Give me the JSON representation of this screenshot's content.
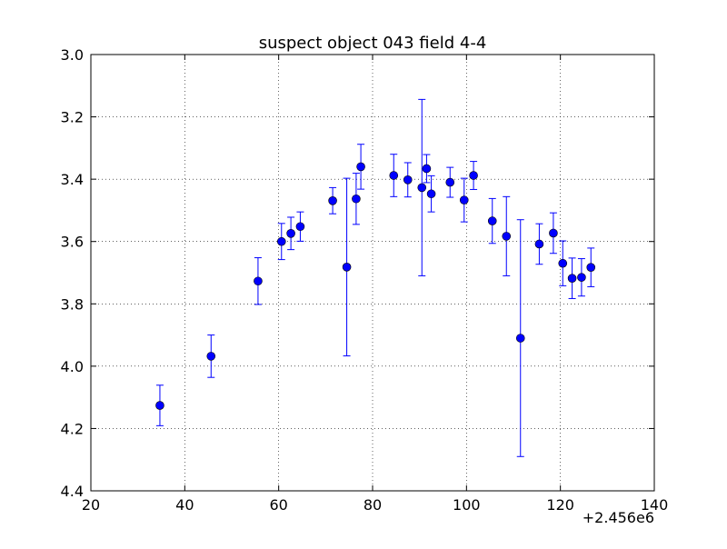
{
  "chart_data": {
    "type": "scatter",
    "title": "suspect object 043 field 4-4",
    "xlabel": "",
    "ylabel": "",
    "x_offset_label": "+2.456e6",
    "xlim": [
      20,
      140
    ],
    "ylim": [
      4.4,
      3.0
    ],
    "y_inverted": true,
    "grid": true,
    "xticks": [
      "20",
      "40",
      "60",
      "80",
      "100",
      "120",
      "140"
    ],
    "yticks": [
      "3.0",
      "3.2",
      "3.4",
      "3.6",
      "3.8",
      "4.0",
      "4.2",
      "4.4"
    ],
    "marker_color": "#0000ff",
    "points": [
      {
        "x": 34.7,
        "y": 4.126,
        "err": 0.065
      },
      {
        "x": 45.6,
        "y": 3.968,
        "err": 0.068
      },
      {
        "x": 55.6,
        "y": 3.727,
        "err": 0.075
      },
      {
        "x": 60.6,
        "y": 3.6,
        "err": 0.058
      },
      {
        "x": 62.6,
        "y": 3.574,
        "err": 0.052
      },
      {
        "x": 64.6,
        "y": 3.552,
        "err": 0.047
      },
      {
        "x": 71.5,
        "y": 3.469,
        "err": 0.042
      },
      {
        "x": 74.5,
        "y": 3.682,
        "err": 0.285
      },
      {
        "x": 76.5,
        "y": 3.463,
        "err": 0.082
      },
      {
        "x": 77.5,
        "y": 3.36,
        "err": 0.072
      },
      {
        "x": 84.5,
        "y": 3.388,
        "err": 0.068
      },
      {
        "x": 87.5,
        "y": 3.402,
        "err": 0.055
      },
      {
        "x": 90.5,
        "y": 3.427,
        "err": 0.283
      },
      {
        "x": 91.5,
        "y": 3.366,
        "err": 0.045
      },
      {
        "x": 92.5,
        "y": 3.447,
        "err": 0.058
      },
      {
        "x": 96.5,
        "y": 3.41,
        "err": 0.048
      },
      {
        "x": 99.5,
        "y": 3.467,
        "err": 0.07
      },
      {
        "x": 101.5,
        "y": 3.388,
        "err": 0.045
      },
      {
        "x": 105.5,
        "y": 3.534,
        "err": 0.072
      },
      {
        "x": 108.5,
        "y": 3.583,
        "err": 0.127
      },
      {
        "x": 111.5,
        "y": 3.91,
        "err": 0.38
      },
      {
        "x": 115.5,
        "y": 3.608,
        "err": 0.065
      },
      {
        "x": 118.5,
        "y": 3.573,
        "err": 0.065
      },
      {
        "x": 120.5,
        "y": 3.67,
        "err": 0.072
      },
      {
        "x": 122.5,
        "y": 3.718,
        "err": 0.065
      },
      {
        "x": 124.5,
        "y": 3.715,
        "err": 0.06
      },
      {
        "x": 126.5,
        "y": 3.683,
        "err": 0.062
      }
    ]
  }
}
